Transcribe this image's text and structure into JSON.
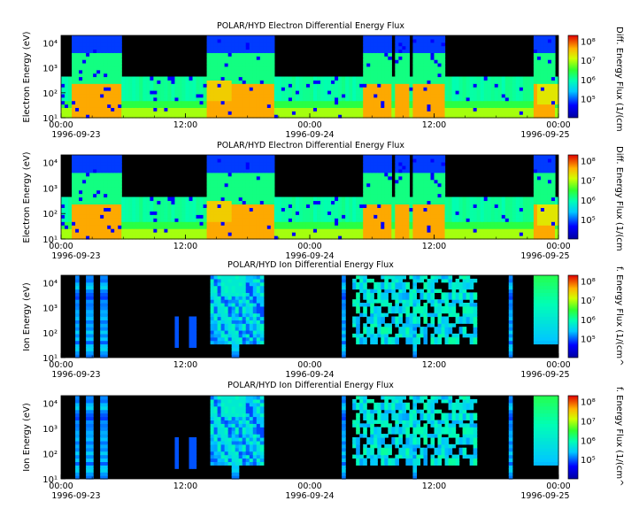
{
  "chart_data": [
    {
      "type": "heatmap",
      "title": "POLAR/HYD  Electron Differential Energy Flux",
      "ylabel": "Electron Energy (eV)",
      "colorbar_label": "Diff. Energy Flux (1/(cm",
      "x_ticks": [
        "00:00",
        "12:00",
        "00:00",
        "12:00",
        "00:00"
      ],
      "date_labels": [
        "1996-09-23",
        "1996-09-24",
        "1996-09-25"
      ],
      "y_ticks": [
        "10¹",
        "10²",
        "10³",
        "10⁴"
      ],
      "colorbar_ticks": [
        "10⁵",
        "10⁶",
        "10⁷",
        "10⁸"
      ],
      "xlim": [
        "1996-09-23 00:00",
        "1996-09-25 00:00"
      ],
      "ylim": [
        10,
        20000
      ],
      "y_scale": "log",
      "colorbar_range": [
        10000,
        200000000
      ],
      "colorbar_scale": "log"
    },
    {
      "type": "heatmap",
      "title": "POLAR/HYD  Electron Differential Energy Flux",
      "ylabel": "Electron Energy (eV)",
      "colorbar_label": "Diff. Energy Flux (1/(cm",
      "x_ticks": [
        "00:00",
        "12:00",
        "00:00",
        "12:00",
        "00:00"
      ],
      "date_labels": [
        "1996-09-23",
        "1996-09-24",
        "1996-09-25"
      ],
      "y_ticks": [
        "10¹",
        "10²",
        "10³",
        "10⁴"
      ],
      "colorbar_ticks": [
        "10⁵",
        "10⁶",
        "10⁷",
        "10⁸"
      ],
      "xlim": [
        "1996-09-23 00:00",
        "1996-09-25 00:00"
      ],
      "ylim": [
        10,
        20000
      ],
      "y_scale": "log",
      "colorbar_range": [
        10000,
        200000000
      ],
      "colorbar_scale": "log"
    },
    {
      "type": "heatmap",
      "title": "POLAR/HYD  Ion Differential Energy Flux",
      "ylabel": "Ion Energy (eV)",
      "colorbar_label": "f. Energy Flux (1/(cm^",
      "x_ticks": [
        "00:00",
        "12:00",
        "00:00",
        "12:00",
        "00:00"
      ],
      "date_labels": [
        "1996-09-23",
        "1996-09-24",
        "1996-09-25"
      ],
      "y_ticks": [
        "10¹",
        "10²",
        "10³",
        "10⁴"
      ],
      "colorbar_ticks": [
        "10⁵",
        "10⁶",
        "10⁷",
        "10⁸"
      ],
      "xlim": [
        "1996-09-23 00:00",
        "1996-09-25 00:00"
      ],
      "ylim": [
        10,
        20000
      ],
      "y_scale": "log",
      "colorbar_range": [
        10000,
        200000000
      ],
      "colorbar_scale": "log"
    },
    {
      "type": "heatmap",
      "title": "POLAR/HYD  Ion Differential Energy Flux",
      "ylabel": "Ion Energy (eV)",
      "colorbar_label": "f. Energy Flux (1/(cm^",
      "x_ticks": [
        "00:00",
        "12:00",
        "00:00",
        "12:00",
        "00:00"
      ],
      "date_labels": [
        "1996-09-23",
        "1996-09-24",
        "1996-09-25"
      ],
      "y_ticks": [
        "10¹",
        "10²",
        "10³",
        "10⁴"
      ],
      "colorbar_ticks": [
        "10⁵",
        "10⁶",
        "10⁷",
        "10⁸"
      ],
      "xlim": [
        "1996-09-23 00:00",
        "1996-09-25 00:00"
      ],
      "ylim": [
        10,
        20000
      ],
      "y_scale": "log",
      "colorbar_range": [
        10000,
        200000000
      ],
      "colorbar_scale": "log"
    }
  ]
}
